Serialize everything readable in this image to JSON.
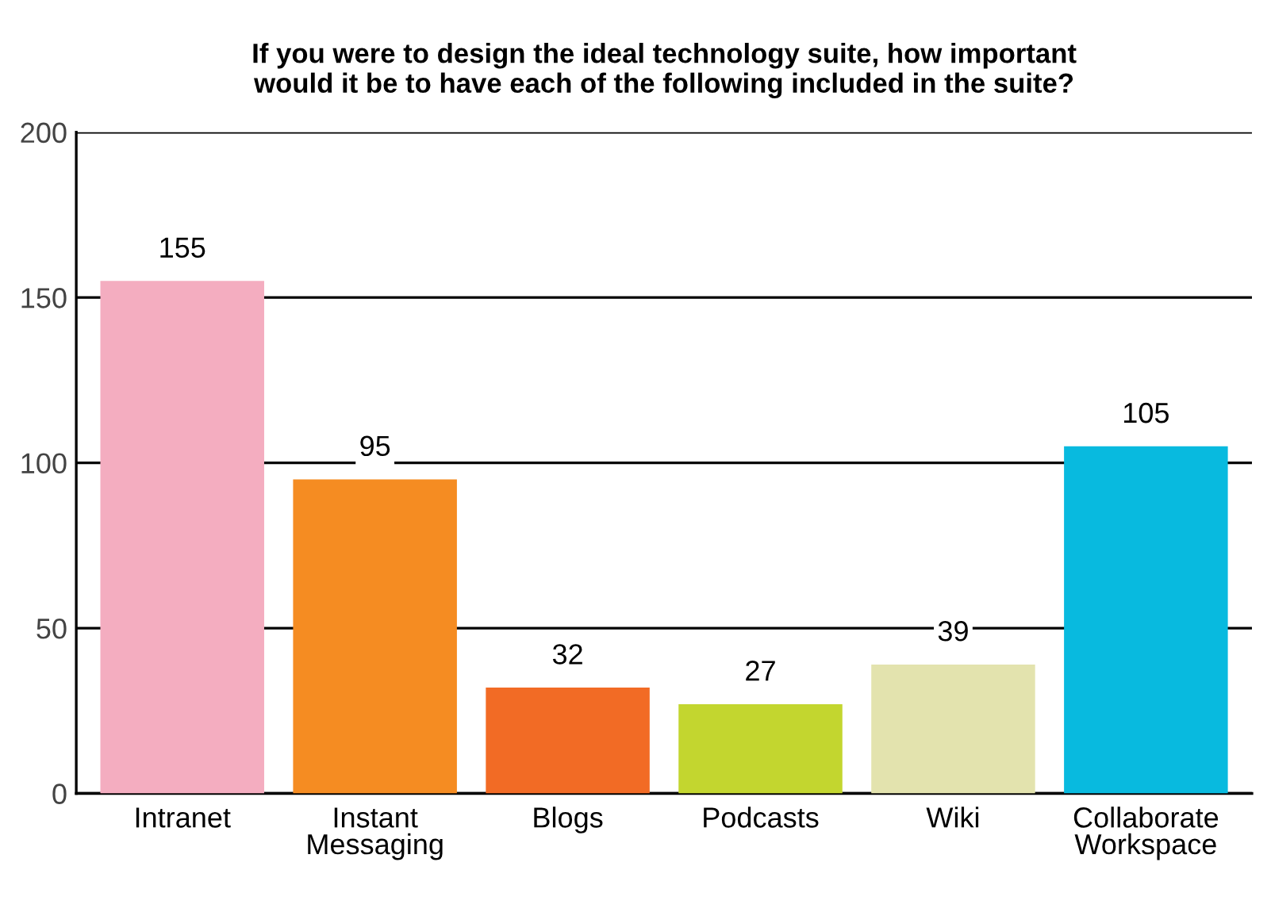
{
  "chart_data": {
    "type": "bar",
    "title": "If you were to design the ideal technology suite, how important\nwould it be to have each of the following included in the suite?",
    "categories": [
      "Intranet",
      "Instant\nMessaging",
      "Blogs",
      "Podcasts",
      "Wiki",
      "Collaborate\nWorkspace"
    ],
    "values": [
      155,
      95,
      32,
      27,
      39,
      105
    ],
    "colors": [
      "#f4adc0",
      "#f58c22",
      "#f26b25",
      "#c3d62f",
      "#e3e3ae",
      "#08badf"
    ],
    "ylim": [
      0,
      200
    ],
    "yticks": [
      0,
      50,
      100,
      150,
      200
    ],
    "grid": "y",
    "data_labels": true
  }
}
